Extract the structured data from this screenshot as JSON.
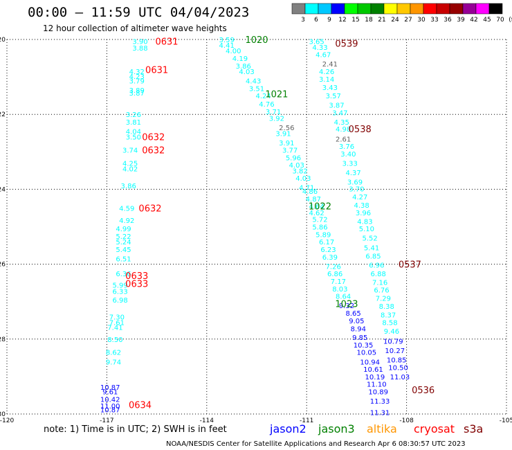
{
  "title": "00:00 — 11:59 UTC 04/04/2023",
  "subtitle": "12 hour collection of altimeter wave heights",
  "note": "note:  1) Time is in UTC; 2) SWH is in feet",
  "credit": "NOAA/NESDIS Center for Satellite Applications and Research   Apr  6 08:30:57 UTC 2023",
  "colorbar": {
    "ticks": [
      "3",
      "6",
      "9",
      "12",
      "15",
      "18",
      "21",
      "24",
      "27",
      "30",
      "33",
      "36",
      "39",
      "42",
      "45",
      "70",
      "(ft)"
    ],
    "colors": [
      "#808080",
      "#00ffff",
      "#00c8ff",
      "#0000ff",
      "#00ff00",
      "#00c800",
      "#008000",
      "#ffff00",
      "#ffc800",
      "#ff9600",
      "#ff0000",
      "#c80000",
      "#960000",
      "#960096",
      "#ff00ff",
      "#000000"
    ]
  },
  "satellites": [
    {
      "name": "jason2",
      "color": "#0000ff"
    },
    {
      "name": "jason3",
      "color": "#008000"
    },
    {
      "name": "altika",
      "color": "#ff9600"
    },
    {
      "name": "cryosat",
      "color": "#ff0000"
    },
    {
      "name": "s3a",
      "color": "#800000"
    }
  ],
  "chart_data": {
    "type": "scatter",
    "title": "00:00 — 11:59 UTC 04/04/2023",
    "subtitle": "12 hour collection of altimeter wave heights",
    "xlabel": "",
    "ylabel": "",
    "xlim": [
      -120,
      -105
    ],
    "ylim": [
      -30,
      -20
    ],
    "x_ticks": [
      "-120",
      "-117",
      "-114",
      "-111",
      "-108",
      "-105"
    ],
    "y_ticks": [
      "-20",
      "-22",
      "-24",
      "-26",
      "-28",
      "-30"
    ],
    "grid": true,
    "tracks": [
      {
        "name": "cryosat-0631-0634",
        "color": "#00ffff",
        "points": [
          [
            "3.90",
            -116.0,
            -20.05
          ],
          [
            "3.88",
            -116.0,
            -20.22
          ],
          [
            "4.32",
            -116.1,
            -20.85
          ],
          [
            "4.23",
            -116.1,
            -20.98
          ],
          [
            "3.79",
            -116.1,
            -21.1
          ],
          [
            "3.89",
            -116.1,
            -21.35
          ],
          [
            "3.87",
            -116.1,
            -21.42
          ],
          [
            "3.26",
            -116.2,
            -22.0
          ],
          [
            "3.81",
            -116.2,
            -22.2
          ],
          [
            "4.04",
            -116.2,
            -22.45
          ],
          [
            "3.50",
            -116.2,
            -22.6
          ],
          [
            "3.74",
            -116.3,
            -22.95
          ],
          [
            "4.25",
            -116.3,
            -23.3
          ],
          [
            "4.02",
            -116.3,
            -23.45
          ],
          [
            "3.86",
            -116.35,
            -23.9
          ],
          [
            "4.59",
            -116.4,
            -24.5
          ],
          [
            "4.92",
            -116.4,
            -24.82
          ],
          [
            "4.99",
            -116.5,
            -25.05
          ],
          [
            "5.22",
            -116.5,
            -25.25
          ],
          [
            "5.24",
            -116.5,
            -25.4
          ],
          [
            "5.45",
            -116.5,
            -25.6
          ],
          [
            "6.51",
            -116.5,
            -25.85
          ],
          [
            "6.36",
            -116.5,
            -26.25
          ],
          [
            "5.99",
            -116.6,
            -26.55
          ],
          [
            "6.33",
            -116.6,
            -26.72
          ],
          [
            "6.98",
            -116.6,
            -26.95
          ],
          [
            "7.30",
            -116.7,
            -27.4
          ],
          [
            "7.61",
            -116.7,
            -27.55
          ],
          [
            "7.41",
            -116.75,
            -27.68
          ],
          [
            "8.50",
            -116.75,
            -28.0
          ],
          [
            "8.62",
            -116.8,
            -28.35
          ],
          [
            "9.74",
            -116.8,
            -28.6
          ]
        ]
      },
      {
        "name": "cryosat-0631-0634-high",
        "color": "#0000ff",
        "points": [
          [
            "10.87",
            -116.9,
            -29.28
          ],
          [
            "9.61",
            -116.9,
            -29.4
          ],
          [
            "10.42",
            -116.9,
            -29.6
          ],
          [
            "11.00",
            -116.9,
            -29.78
          ],
          [
            "10.87",
            -116.9,
            -29.88
          ]
        ]
      },
      {
        "name": "jason3-1020-1022",
        "color": "#00ffff",
        "points": [
          [
            "3.59",
            -113.4,
            -20.0
          ],
          [
            "4.41",
            -113.4,
            -20.15
          ],
          [
            "4.00",
            -113.2,
            -20.3
          ],
          [
            "4.19",
            -113.0,
            -20.5
          ],
          [
            "3.86",
            -112.9,
            -20.7
          ],
          [
            "4.03",
            -112.8,
            -20.85
          ],
          [
            "4.43",
            -112.6,
            -21.1
          ],
          [
            "3.51",
            -112.5,
            -21.3
          ],
          [
            "4.24",
            -112.3,
            -21.5
          ],
          [
            "4.76",
            -112.2,
            -21.72
          ],
          [
            "3.71",
            -112.0,
            -21.92
          ],
          [
            "3.92",
            -111.9,
            -22.1
          ],
          [
            "3.91",
            -111.7,
            -22.5
          ],
          [
            "3.91",
            -111.6,
            -22.75
          ],
          [
            "3.77",
            -111.5,
            -22.95
          ],
          [
            "5.96",
            -111.4,
            -23.15
          ],
          [
            "4.03",
            -111.3,
            -23.35
          ],
          [
            "3.82",
            -111.2,
            -23.5
          ],
          [
            "4.03",
            -111.1,
            -23.7
          ],
          [
            "4.71",
            -111.0,
            -23.95
          ],
          [
            "4.86",
            -110.9,
            -24.05
          ],
          [
            "4.87",
            -110.8,
            -24.25
          ],
          [
            "4.64",
            -110.7,
            -24.45
          ],
          [
            "4.62",
            -110.7,
            -24.62
          ],
          [
            "5.72",
            -110.6,
            -24.8
          ],
          [
            "5.86",
            -110.6,
            -25.0
          ],
          [
            "5.89",
            -110.5,
            -25.2
          ],
          [
            "6.17",
            -110.4,
            -25.4
          ],
          [
            "6.23",
            -110.35,
            -25.6
          ],
          [
            "6.39",
            -110.3,
            -25.8
          ],
          [
            "7.26",
            -110.2,
            -26.05
          ],
          [
            "6.86",
            -110.15,
            -26.25
          ],
          [
            "7.17",
            -110.05,
            -26.45
          ],
          [
            "8.03",
            -110.0,
            -26.65
          ],
          [
            "8.64",
            -109.9,
            -26.85
          ]
        ]
      },
      {
        "name": "jason3-gray",
        "color": "#606060",
        "points": [
          [
            "2.56",
            -111.6,
            -22.35
          ]
        ]
      },
      {
        "name": "jason3-high",
        "color": "#0000ff",
        "points": [
          [
            "9.32",
            -109.8,
            -27.1
          ],
          [
            "8.65",
            -109.6,
            -27.3
          ],
          [
            "9.05",
            -109.5,
            -27.5
          ],
          [
            "8.94",
            -109.45,
            -27.72
          ],
          [
            "9.85",
            -109.4,
            -27.95
          ],
          [
            "10.35",
            -109.3,
            -28.15
          ],
          [
            "10.05",
            -109.2,
            -28.35
          ],
          [
            "10.94",
            -109.1,
            -28.6
          ],
          [
            "10.61",
            -109.0,
            -28.8
          ],
          [
            "10.19",
            -108.95,
            -29.0
          ],
          [
            "11.10",
            -108.9,
            -29.2
          ],
          [
            "10.89",
            -108.85,
            -29.4
          ],
          [
            "11.33",
            -108.8,
            -29.65
          ],
          [
            "11.31",
            -108.8,
            -29.95
          ]
        ]
      },
      {
        "name": "s3a-0539-0536",
        "color": "#00ffff",
        "points": [
          [
            "3.65",
            -110.7,
            -20.05
          ],
          [
            "4.33",
            -110.6,
            -20.2
          ],
          [
            "4.67",
            -110.5,
            -20.4
          ],
          [
            "4.26",
            -110.4,
            -20.85
          ],
          [
            "3.14",
            -110.4,
            -21.05
          ],
          [
            "3.43",
            -110.3,
            -21.28
          ],
          [
            "3.57",
            -110.2,
            -21.5
          ],
          [
            "3.87",
            -110.1,
            -21.75
          ],
          [
            "3.47",
            -110.0,
            -21.95
          ],
          [
            "4.35",
            -109.95,
            -22.2
          ],
          [
            "4.98",
            -109.9,
            -22.38
          ],
          [
            "3.76",
            -109.8,
            -22.85
          ],
          [
            "3.40",
            -109.75,
            -23.05
          ],
          [
            "3.33",
            -109.7,
            -23.3
          ],
          [
            "4.37",
            -109.6,
            -23.55
          ],
          [
            "3.69",
            -109.55,
            -23.8
          ],
          [
            "3.70",
            -109.5,
            -23.98
          ],
          [
            "4.27",
            -109.4,
            -24.2
          ],
          [
            "4.38",
            -109.35,
            -24.42
          ],
          [
            "3.96",
            -109.3,
            -24.62
          ],
          [
            "4.83",
            -109.25,
            -24.85
          ],
          [
            "5.10",
            -109.2,
            -25.05
          ],
          [
            "5.52",
            -109.1,
            -25.3
          ],
          [
            "5.41",
            -109.05,
            -25.55
          ],
          [
            "6.85",
            -109.0,
            -25.78
          ],
          [
            "6.96",
            -108.9,
            -26.02
          ],
          [
            "6.88",
            -108.85,
            -26.25
          ],
          [
            "7.16",
            -108.8,
            -26.48
          ],
          [
            "6.76",
            -108.75,
            -26.68
          ],
          [
            "7.29",
            -108.7,
            -26.9
          ],
          [
            "8.38",
            -108.6,
            -27.12
          ],
          [
            "8.37",
            -108.55,
            -27.35
          ],
          [
            "8.58",
            -108.5,
            -27.55
          ],
          [
            "9.46",
            -108.45,
            -27.78
          ]
        ]
      },
      {
        "name": "s3a-gray",
        "color": "#606060",
        "points": [
          [
            "2.41",
            -110.3,
            -20.65
          ],
          [
            "2.61",
            -109.9,
            -22.65
          ]
        ]
      },
      {
        "name": "s3a-high",
        "color": "#0000ff",
        "points": [
          [
            "10.79",
            -108.4,
            -28.05
          ],
          [
            "10.27",
            -108.35,
            -28.3
          ],
          [
            "10.85",
            -108.3,
            -28.55
          ],
          [
            "10.50",
            -108.25,
            -28.75
          ],
          [
            "11.03",
            -108.2,
            -29.0
          ]
        ]
      }
    ],
    "passes": [
      {
        "label": "0631",
        "color": "#ff0000",
        "x": -115.2,
        "y": -20.05
      },
      {
        "label": "0631",
        "color": "#ff0000",
        "x": -115.5,
        "y": -20.8
      },
      {
        "label": "0632",
        "color": "#ff0000",
        "x": -115.6,
        "y": -22.6
      },
      {
        "label": "0632",
        "color": "#ff0000",
        "x": -115.6,
        "y": -22.95
      },
      {
        "label": "0632",
        "color": "#ff0000",
        "x": -115.7,
        "y": -24.5
      },
      {
        "label": "0633",
        "color": "#ff0000",
        "x": -116.1,
        "y": -26.3
      },
      {
        "label": "0633",
        "color": "#ff0000",
        "x": -116.1,
        "y": -26.52
      },
      {
        "label": "0634",
        "color": "#ff0000",
        "x": -116.0,
        "y": -29.75
      },
      {
        "label": "1020",
        "color": "#008000",
        "x": -112.5,
        "y": -20.0
      },
      {
        "label": "1021",
        "color": "#008000",
        "x": -111.9,
        "y": -21.45
      },
      {
        "label": "1022",
        "color": "#008000",
        "x": -110.6,
        "y": -24.45
      },
      {
        "label": "1023",
        "color": "#008000",
        "x": -109.8,
        "y": -27.05
      },
      {
        "label": "0539",
        "color": "#800000",
        "x": -109.8,
        "y": -20.1
      },
      {
        "label": "0538",
        "color": "#800000",
        "x": -109.4,
        "y": -22.38
      },
      {
        "label": "0537",
        "color": "#800000",
        "x": -107.9,
        "y": -26.0
      },
      {
        "label": "0536",
        "color": "#800000",
        "x": -107.5,
        "y": -29.35
      }
    ],
    "axis_labels_drawn": true
  }
}
